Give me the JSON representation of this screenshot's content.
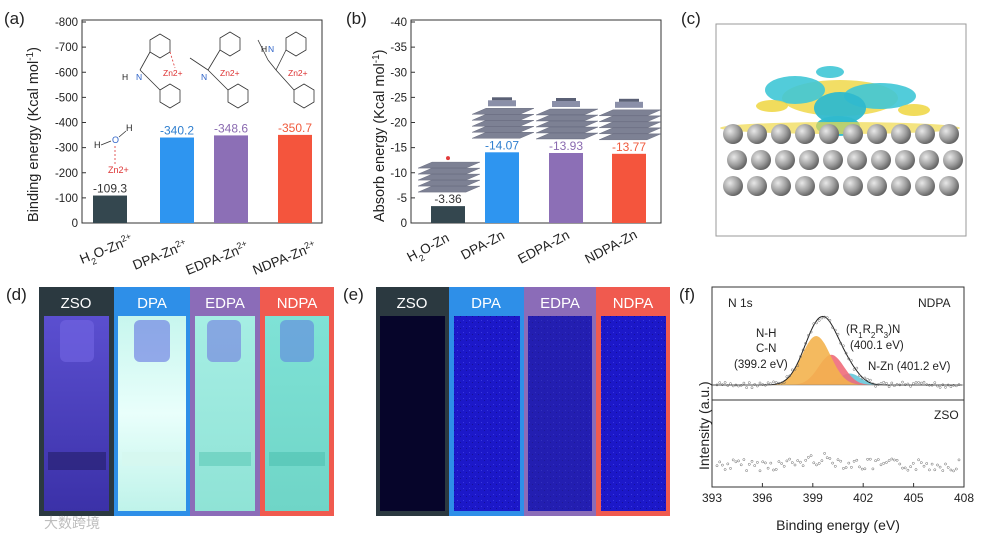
{
  "panel_labels": {
    "a": "(a)",
    "b": "(b)",
    "c": "(c)",
    "d": "(d)",
    "e": "(e)",
    "f": "(f)"
  },
  "colors": {
    "dark": "#34474f",
    "blue": "#2e95f0",
    "purple": "#8c6fb6",
    "red": "#f4553d",
    "ntext": "#8a8a8a",
    "ptext": "#8a6ab0",
    "rtext": "#f05a3c",
    "btext": "#2f7fcf"
  },
  "chart_data": [
    {
      "id": "a",
      "type": "bar",
      "categories": [
        "H2O-Zn2+",
        "DPA-Zn2+",
        "EDPA-Zn2+",
        "NDPA-Zn2+"
      ],
      "values": [
        -109.3,
        -340.2,
        -348.6,
        -350.7
      ],
      "data_labels": [
        "-109.3",
        "-340.2",
        "-348.6",
        "-350.7"
      ],
      "ylabel": "Binding energy (Kcal mol-1)",
      "yticks": [
        "0",
        "-100",
        "-200",
        "-300",
        "-400",
        "-500",
        "-600",
        "-700",
        "-800"
      ],
      "ylim": [
        0,
        -800
      ],
      "molecule_labels": {
        "water_o": "O",
        "water_h": "H",
        "zn": "Zn2+",
        "nh": "H",
        "n": "N",
        "zn_star": "Zn2+"
      }
    },
    {
      "id": "b",
      "type": "bar",
      "categories": [
        "H2O-Zn",
        "DPA-Zn",
        "EDPA-Zn",
        "NDPA-Zn"
      ],
      "values": [
        -3.36,
        -14.07,
        -13.93,
        -13.77
      ],
      "data_labels": [
        "-3.36",
        "-14.07",
        "-13.93",
        "-13.77"
      ],
      "ylabel": "Absorb energy (Kcal mol-1)",
      "yticks": [
        "0",
        "-5",
        "-10",
        "-15",
        "-20",
        "-25",
        "-30",
        "-35",
        "-40"
      ],
      "ylim": [
        0,
        -40
      ]
    },
    {
      "id": "f",
      "type": "line",
      "xlabel": "Binding energy (eV)",
      "ylabel": "Intensity (a.u.)",
      "xticks": [
        "393",
        "396",
        "399",
        "402",
        "405",
        "408"
      ],
      "xlim": [
        393,
        408
      ],
      "top_panel": {
        "title_left": "N 1s",
        "title_right": "NDPA",
        "peaks": [
          {
            "name": "N-H / C-N",
            "center": 399.2,
            "height": 0.68,
            "width": 0.85,
            "color": "#f3b24e"
          },
          {
            "name": "(R1R2R3)N",
            "center": 400.1,
            "height": 0.42,
            "width": 0.75,
            "color": "#f06b7a"
          },
          {
            "name": "N-Zn",
            "center": 401.2,
            "height": 0.16,
            "width": 0.65,
            "color": "#66c7d9"
          }
        ]
      },
      "bottom_panel": {
        "title_right": "ZSO"
      }
    }
  ],
  "fig_a": {
    "label_texts": [
      "-109.3",
      "-340.2",
      "-348.6",
      "-350.7"
    ],
    "cat_main": [
      "H",
      "O-Zn",
      "DPA-Zn",
      "EDPA-Zn",
      "NDPA-Zn"
    ],
    "sub2": "2",
    "sup": "2+",
    "ylabel_main": "Binding energy (Kcal mol",
    "ylabel_sup": "-1",
    "ylabel_end": ")"
  },
  "fig_b": {
    "ylabel_main": "Absorb energy (Kcal mol",
    "ylabel_sup": "-1",
    "ylabel_end": ")"
  },
  "photos_d": {
    "labels": [
      "ZSO",
      "DPA",
      "EDPA",
      "NDPA"
    ]
  },
  "photos_e": {
    "labels": [
      "ZSO",
      "DPA",
      "EDPA",
      "NDPA"
    ]
  },
  "xps_annotations": {
    "nh": "N-H",
    "cn": "C-N",
    "cn_ev": "(399.2 eV)",
    "r_main": "(R",
    "r1": "1",
    "r_mid": "R",
    "r2": "2",
    "r3": "3",
    "r_end": ")N",
    "r_ev": "(400.1 eV)",
    "nzn": "N-Zn (401.2 eV)"
  },
  "watermark": "大数跨境"
}
